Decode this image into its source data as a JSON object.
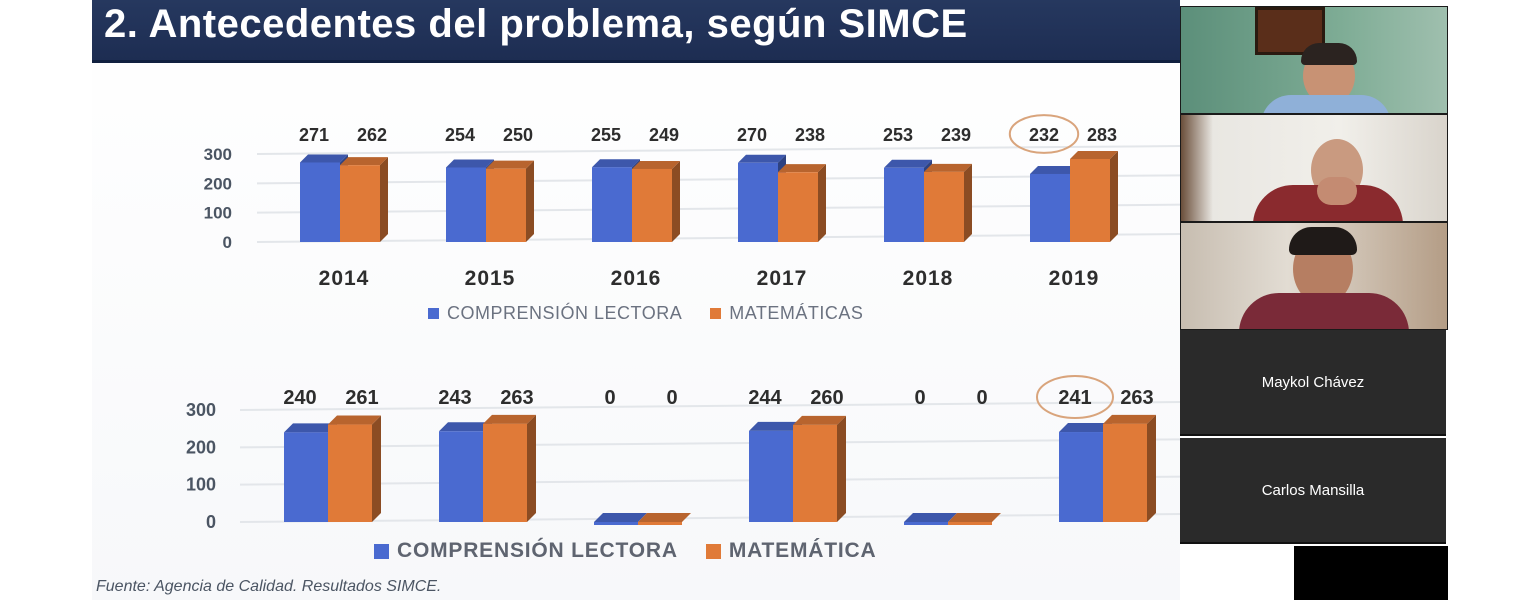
{
  "slide": {
    "title": "2. Antecedentes del problema, según SIMCE",
    "source": "Fuente: Agencia de Calidad. Resultados SIMCE."
  },
  "colors": {
    "blue": "#4a6ad0",
    "orange": "#e07a38",
    "title_bar": "#1f2f55"
  },
  "chart_data": [
    {
      "type": "bar",
      "categories": [
        "2014",
        "2015",
        "2016",
        "2017",
        "2018",
        "2019"
      ],
      "series": [
        {
          "name": "COMPRENSIÓN LECTORA",
          "values": [
            271,
            254,
            255,
            270,
            253,
            232
          ]
        },
        {
          "name": "MATEMÁTICAS",
          "values": [
            262,
            250,
            249,
            238,
            239,
            283
          ]
        }
      ],
      "yticks": [
        "300",
        "200",
        "100",
        "0"
      ],
      "ylim": [
        0,
        300
      ],
      "grid": true,
      "highlighted_label": "232",
      "legend_position": "bottom"
    },
    {
      "type": "bar",
      "categories": [
        "",
        "",
        "",
        "",
        "",
        ""
      ],
      "series": [
        {
          "name": "COMPRENSIÓN LECTORA",
          "values": [
            240,
            243,
            0,
            244,
            0,
            241
          ]
        },
        {
          "name": "MATEMÁTICA",
          "values": [
            261,
            263,
            0,
            260,
            0,
            263
          ]
        }
      ],
      "yticks": [
        "300",
        "200",
        "100",
        "0"
      ],
      "ylim": [
        0,
        300
      ],
      "grid": true,
      "highlighted_label": "241",
      "legend_position": "bottom"
    }
  ],
  "participants": [
    {
      "kind": "video",
      "icon": "participant-video-icon"
    },
    {
      "kind": "video",
      "icon": "participant-video-icon"
    },
    {
      "kind": "video",
      "icon": "participant-video-icon"
    },
    {
      "kind": "name",
      "name": "Maykol Chávez"
    },
    {
      "kind": "name",
      "name": "Carlos Mansilla"
    }
  ]
}
